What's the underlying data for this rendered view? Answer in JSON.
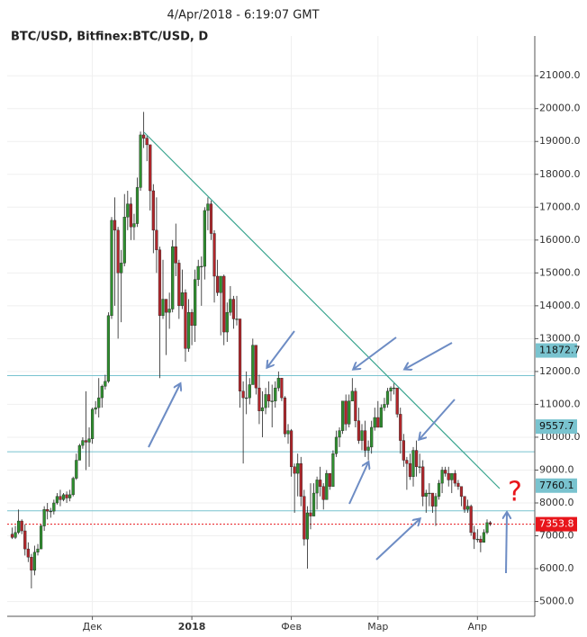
{
  "chart_data": {
    "type": "candlestick",
    "timestamp": "4/Apr/2018 - 6:19:07 GMT",
    "title": "BTC/USD, Bitfinex:BTC/USD, D",
    "annotation": "?",
    "up_color": "#2f8f2f",
    "down_color": "#b0262b",
    "ylim": [
      4550,
      22210
    ],
    "yticks": [
      {
        "value": 5000,
        "label": "5000.0"
      },
      {
        "value": 6000,
        "label": "6000.0"
      },
      {
        "value": 7000,
        "label": "7000.0"
      },
      {
        "value": 8000,
        "label": "8000.0"
      },
      {
        "value": 9000,
        "label": "9000.0"
      },
      {
        "value": 10000,
        "label": "10000.0"
      },
      {
        "value": 11000,
        "label": "11000.0"
      },
      {
        "value": 12000,
        "label": "12000.0"
      },
      {
        "value": 13000,
        "label": "13000.0"
      },
      {
        "value": 14000,
        "label": "14000.0"
      },
      {
        "value": 15000,
        "label": "15000.0"
      },
      {
        "value": 16000,
        "label": "16000.0"
      },
      {
        "value": 17000,
        "label": "17000.0"
      },
      {
        "value": 18000,
        "label": "18000.0"
      },
      {
        "value": 19000,
        "label": "19000.0"
      },
      {
        "value": 20000,
        "label": "20000.0"
      },
      {
        "value": 21000,
        "label": "21000.0"
      }
    ],
    "grid": true,
    "levels": [
      {
        "value": 11872.7,
        "color": "#79c3cf"
      },
      {
        "value": 9557.7,
        "color": "#79c3cf"
      },
      {
        "value": 7760.1,
        "color": "#79c3cf"
      }
    ],
    "last_price": {
      "value": 7353.8,
      "color": "#e8151b"
    },
    "categories": [
      null,
      null,
      null,
      null,
      null,
      null,
      null,
      null,
      null,
      null,
      null,
      null,
      null,
      null,
      null,
      null,
      null,
      null,
      null,
      null,
      null,
      null,
      null,
      null,
      null,
      "Дек",
      null,
      null,
      null,
      null,
      null,
      null,
      null,
      null,
      null,
      null,
      null,
      null,
      null,
      null,
      null,
      null,
      null,
      null,
      null,
      null,
      null,
      null,
      null,
      null,
      null,
      null,
      null,
      null,
      null,
      null,
      "2018",
      null,
      null,
      null,
      null,
      null,
      null,
      null,
      null,
      null,
      null,
      null,
      null,
      null,
      null,
      null,
      null,
      null,
      null,
      null,
      null,
      null,
      null,
      null,
      null,
      null,
      null,
      null,
      null,
      null,
      null,
      "Фев",
      null,
      null,
      null,
      null,
      null,
      null,
      null,
      null,
      null,
      null,
      null,
      null,
      null,
      null,
      null,
      null,
      null,
      null,
      null,
      null,
      null,
      null,
      null,
      null,
      null,
      null,
      "Мар",
      null,
      null,
      null,
      null,
      null,
      null,
      null,
      null,
      null,
      null,
      null,
      null,
      null,
      null,
      null,
      null,
      null,
      null,
      null,
      null,
      null,
      null,
      null,
      null,
      null,
      null,
      null,
      null,
      null,
      null,
      "Апр",
      null,
      null,
      null
    ],
    "ohlc": [
      [
        7050,
        7250,
        6900,
        6950
      ],
      [
        6950,
        7300,
        6900,
        7100
      ],
      [
        7100,
        7800,
        7050,
        7450
      ],
      [
        7450,
        7500,
        7050,
        7150
      ],
      [
        7150,
        7350,
        6400,
        6600
      ],
      [
        6600,
        6800,
        6200,
        6350
      ],
      [
        6350,
        6450,
        5400,
        5950
      ],
      [
        5950,
        6700,
        5800,
        6500
      ],
      [
        6500,
        6750,
        6400,
        6600
      ],
      [
        6600,
        7350,
        6600,
        7300
      ],
      [
        7300,
        7900,
        7150,
        7800
      ],
      [
        7800,
        8000,
        7500,
        7750
      ],
      [
        7750,
        7850,
        7550,
        7750
      ],
      [
        7750,
        8100,
        7650,
        8000
      ],
      [
        8000,
        8300,
        7950,
        8200
      ],
      [
        8200,
        8400,
        7900,
        8100
      ],
      [
        8100,
        8300,
        8050,
        8250
      ],
      [
        8250,
        8350,
        8000,
        8150
      ],
      [
        8150,
        8400,
        8050,
        8250
      ],
      [
        8250,
        8800,
        8200,
        8750
      ],
      [
        8750,
        9500,
        8700,
        9300
      ],
      [
        9300,
        9800,
        9300,
        9750
      ],
      [
        9750,
        10000,
        9650,
        9900
      ],
      [
        9900,
        11400,
        9000,
        9850
      ],
      [
        9850,
        10300,
        9100,
        9950
      ],
      [
        9950,
        10900,
        9800,
        10850
      ],
      [
        10850,
        11100,
        10700,
        10900
      ],
      [
        10900,
        11800,
        10600,
        11200
      ],
      [
        11200,
        11600,
        10900,
        11550
      ],
      [
        11550,
        11900,
        11450,
        11700
      ],
      [
        11700,
        13800,
        11650,
        13700
      ],
      [
        13700,
        16700,
        13600,
        16600
      ],
      [
        16600,
        17300,
        14000,
        16300
      ],
      [
        16300,
        16400,
        13000,
        15000
      ],
      [
        15000,
        15700,
        13500,
        15300
      ],
      [
        15300,
        17400,
        15200,
        16700
      ],
      [
        16700,
        17500,
        16300,
        17100
      ],
      [
        17100,
        17300,
        16000,
        16400
      ],
      [
        16400,
        16800,
        16000,
        16500
      ],
      [
        16500,
        17900,
        16400,
        17600
      ],
      [
        17600,
        19300,
        17500,
        19200
      ],
      [
        19200,
        19900,
        18800,
        19100
      ],
      [
        19100,
        19200,
        18400,
        18900
      ],
      [
        18900,
        18900,
        16900,
        17500
      ],
      [
        17500,
        17700,
        15600,
        16300
      ],
      [
        16300,
        17300,
        15000,
        15700
      ],
      [
        15700,
        15800,
        11800,
        13700
      ],
      [
        13700,
        15400,
        13600,
        14200
      ],
      [
        14200,
        14200,
        12500,
        13800
      ],
      [
        13800,
        14400,
        13300,
        13900
      ],
      [
        13900,
        16000,
        13800,
        15800
      ],
      [
        15800,
        16500,
        14900,
        15300
      ],
      [
        15300,
        15400,
        13600,
        14000
      ],
      [
        14000,
        15100,
        13900,
        14400
      ],
      [
        14400,
        14500,
        12300,
        12700
      ],
      [
        12700,
        14200,
        12600,
        13800
      ],
      [
        13800,
        13900,
        12800,
        13400
      ],
      [
        13400,
        15100,
        12900,
        14800
      ],
      [
        14800,
        15400,
        14600,
        15200
      ],
      [
        15200,
        15500,
        14000,
        15200
      ],
      [
        15200,
        17000,
        14800,
        16900
      ],
      [
        16900,
        17300,
        16300,
        17100
      ],
      [
        17100,
        17200,
        16000,
        16200
      ],
      [
        16200,
        16300,
        14100,
        14900
      ],
      [
        14900,
        15400,
        14300,
        14400
      ],
      [
        14400,
        14900,
        13100,
        14900
      ],
      [
        14900,
        14950,
        12800,
        13200
      ],
      [
        13200,
        14100,
        12900,
        13800
      ],
      [
        13800,
        14600,
        13700,
        14200
      ],
      [
        14200,
        14300,
        13300,
        13600
      ],
      [
        13600,
        14300,
        13400,
        13600
      ],
      [
        13600,
        13600,
        10900,
        11400
      ],
      [
        11400,
        11700,
        9200,
        11200
      ],
      [
        11200,
        12000,
        10700,
        11200
      ],
      [
        11200,
        11800,
        11000,
        11600
      ],
      [
        11600,
        13000,
        11600,
        12800
      ],
      [
        12800,
        12800,
        11300,
        11500
      ],
      [
        11500,
        11900,
        10400,
        10800
      ],
      [
        10800,
        11400,
        10000,
        10900
      ],
      [
        10900,
        11500,
        10700,
        11300
      ],
      [
        11300,
        11700,
        10900,
        11100
      ],
      [
        11100,
        11600,
        10300,
        11100
      ],
      [
        11100,
        11700,
        10900,
        11500
      ],
      [
        11500,
        12000,
        11400,
        11800
      ],
      [
        11800,
        11800,
        11100,
        11200
      ],
      [
        11200,
        11250,
        10000,
        10100
      ],
      [
        10100,
        10400,
        9800,
        10200
      ],
      [
        10200,
        10250,
        8800,
        9100
      ],
      [
        9100,
        9200,
        7700,
        8900
      ],
      [
        8900,
        9500,
        8200,
        9200
      ],
      [
        9200,
        9400,
        7900,
        8200
      ],
      [
        8200,
        8400,
        6700,
        6900
      ],
      [
        6900,
        7900,
        6000,
        7700
      ],
      [
        7700,
        8600,
        7200,
        7600
      ],
      [
        7600,
        8600,
        7600,
        8300
      ],
      [
        8300,
        8800,
        7800,
        8700
      ],
      [
        8700,
        9100,
        8200,
        8500
      ],
      [
        8500,
        8600,
        7800,
        8100
      ],
      [
        8100,
        9000,
        8100,
        8900
      ],
      [
        8900,
        8900,
        8400,
        8500
      ],
      [
        8500,
        9600,
        8500,
        9500
      ],
      [
        9500,
        10200,
        9400,
        10000
      ],
      [
        10000,
        10300,
        9700,
        10200
      ],
      [
        10200,
        11100,
        10100,
        11100
      ],
      [
        11100,
        11300,
        10200,
        10400
      ],
      [
        10400,
        11300,
        10300,
        11100
      ],
      [
        11100,
        11800,
        11100,
        11400
      ],
      [
        11400,
        11500,
        10300,
        10500
      ],
      [
        10500,
        10900,
        9800,
        9900
      ],
      [
        9900,
        10400,
        9600,
        10200
      ],
      [
        10200,
        10500,
        9400,
        9600
      ],
      [
        9600,
        9900,
        9300,
        9700
      ],
      [
        9700,
        10500,
        9500,
        10300
      ],
      [
        10300,
        10900,
        10200,
        10600
      ],
      [
        10600,
        11100,
        10300,
        10300
      ],
      [
        10300,
        11000,
        10300,
        10900
      ],
      [
        10900,
        11200,
        10800,
        11000
      ],
      [
        11000,
        11500,
        10900,
        11400
      ],
      [
        11400,
        11550,
        11100,
        11500
      ],
      [
        11500,
        11650,
        11300,
        11500
      ],
      [
        11500,
        11500,
        10600,
        10700
      ],
      [
        10700,
        10900,
        9500,
        9900
      ],
      [
        9900,
        10100,
        9100,
        9300
      ],
      [
        9300,
        9400,
        8400,
        9200
      ],
      [
        9200,
        9500,
        8700,
        8800
      ],
      [
        8800,
        9700,
        8500,
        9600
      ],
      [
        9600,
        9900,
        8800,
        9100
      ],
      [
        9100,
        9500,
        8900,
        9100
      ],
      [
        9100,
        9300,
        7900,
        8200
      ],
      [
        8200,
        8400,
        7700,
        8300
      ],
      [
        8300,
        8600,
        7900,
        8300
      ],
      [
        8300,
        8300,
        7700,
        7900
      ],
      [
        7900,
        8300,
        7300,
        8200
      ],
      [
        8200,
        8700,
        8100,
        8600
      ],
      [
        8600,
        9100,
        8300,
        9000
      ],
      [
        9000,
        9100,
        8800,
        8900
      ],
      [
        8900,
        9100,
        8500,
        8700
      ],
      [
        8700,
        8900,
        8300,
        8900
      ],
      [
        8900,
        9000,
        8500,
        8600
      ],
      [
        8600,
        8700,
        8400,
        8500
      ],
      [
        8500,
        8500,
        7900,
        8200
      ],
      [
        8200,
        8200,
        7700,
        7800
      ],
      [
        7800,
        8100,
        7700,
        7900
      ],
      [
        7900,
        7950,
        7000,
        7100
      ],
      [
        7100,
        7300,
        6600,
        6900
      ],
      [
        6900,
        7200,
        6800,
        6900
      ],
      [
        6900,
        7000,
        6500,
        6800
      ],
      [
        6800,
        7200,
        6800,
        7100
      ],
      [
        7100,
        7500,
        7050,
        7400
      ],
      [
        7400,
        7450,
        7300,
        7353.8
      ]
    ]
  }
}
